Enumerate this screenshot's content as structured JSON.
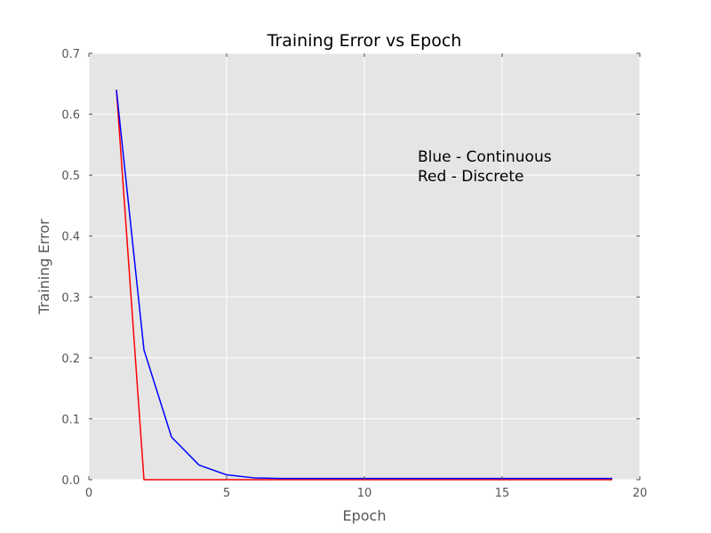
{
  "chart_data": {
    "type": "line",
    "title": "Training Error vs Epoch",
    "xlabel": "Epoch",
    "ylabel": "Training Error",
    "xlim": [
      0,
      20
    ],
    "ylim": [
      0,
      0.7
    ],
    "xticks": [
      "0",
      "5",
      "10",
      "15",
      "20"
    ],
    "yticks": [
      "0.0",
      "0.1",
      "0.2",
      "0.3",
      "0.4",
      "0.5",
      "0.6",
      "0.7"
    ],
    "grid": true,
    "series": [
      {
        "color": "#0000ff",
        "x": [
          1,
          2,
          3,
          4,
          5,
          6,
          7,
          8,
          9,
          10,
          11,
          12,
          13,
          14,
          15,
          16,
          17,
          18,
          19
        ],
        "y": [
          0.64,
          0.213,
          0.07,
          0.024,
          0.008,
          0.003,
          0.002,
          0.002,
          0.002,
          0.002,
          0.002,
          0.002,
          0.002,
          0.002,
          0.002,
          0.002,
          0.002,
          0.002,
          0.002
        ]
      },
      {
        "color": "#ff0000",
        "x": [
          1,
          2,
          3,
          4,
          5,
          6,
          7,
          8,
          9,
          10,
          11,
          12,
          13,
          14,
          15,
          16,
          17,
          18,
          19
        ],
        "y": [
          0.64,
          0.0,
          0.0,
          0.0,
          0.0,
          0.0,
          0.0,
          0.0,
          0.0,
          0.0,
          0.0,
          0.0,
          0.0,
          0.0,
          0.0,
          0.0,
          0.0,
          0.0,
          0.0
        ]
      }
    ],
    "annotation": {
      "lines": [
        "Blue - Continuous",
        "Red - Discrete"
      ],
      "position": "upper-right-center"
    },
    "plot_background": "#e5e5e5"
  }
}
